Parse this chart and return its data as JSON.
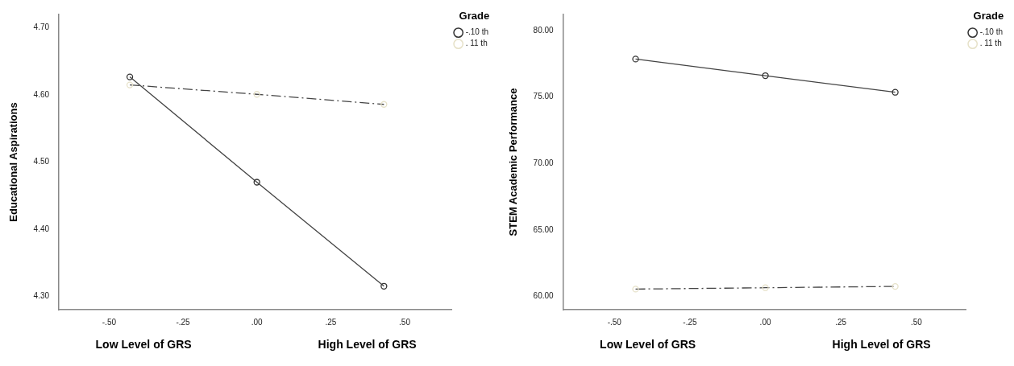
{
  "chart_data": [
    {
      "type": "line",
      "ylabel": "Educational Aspirations",
      "legend_title": "Grade",
      "legend": "top right",
      "marker": "circle",
      "grid": false,
      "xlim": [
        -0.67,
        0.66
      ],
      "xticks": [
        {
          "value": -0.5,
          "label": "-.50"
        },
        {
          "value": -0.25,
          "label": "-.25"
        },
        {
          "value": 0,
          "label": ".00"
        },
        {
          "value": 0.25,
          "label": ".25"
        },
        {
          "value": 0.5,
          "label": ".50"
        }
      ],
      "ylim": [
        4.28,
        4.72
      ],
      "yticks": [
        {
          "value": 4.3,
          "label": "4.30"
        },
        {
          "value": 4.4,
          "label": "4.40"
        },
        {
          "value": 4.5,
          "label": "4.50"
        },
        {
          "value": 4.6,
          "label": "4.60"
        },
        {
          "value": 4.7,
          "label": "4.70"
        }
      ],
      "x": [
        -0.43,
        0,
        0.43
      ],
      "series": [
        {
          "name": "-.10 th",
          "color": "#333333",
          "line_style": "solid",
          "values": [
            4.627,
            4.47,
            4.315
          ]
        },
        {
          "name": ". 11 th",
          "color": "#e6e1c8",
          "line_style": "dashed",
          "values": [
            4.615,
            4.601,
            4.586
          ]
        }
      ],
      "annotations": [
        "Low Level of GRS",
        "High Level of GRS"
      ]
    },
    {
      "type": "line",
      "ylabel": "STEM Academic Performance",
      "legend_title": "Grade",
      "legend": "top right",
      "marker": "circle",
      "grid": false,
      "xlim": [
        -0.67,
        0.665
      ],
      "xticks": [
        {
          "value": -0.5,
          "label": "-.50"
        },
        {
          "value": -0.25,
          "label": "-.25"
        },
        {
          "value": 0,
          "label": ".00"
        },
        {
          "value": 0.25,
          "label": ".25"
        },
        {
          "value": 0.5,
          "label": ".50"
        }
      ],
      "ylim": [
        59,
        81.2
      ],
      "yticks": [
        {
          "value": 60,
          "label": "60.00"
        },
        {
          "value": 65,
          "label": "65.00"
        },
        {
          "value": 70,
          "label": "70.00"
        },
        {
          "value": 75,
          "label": "75.00"
        },
        {
          "value": 80,
          "label": "80.00"
        }
      ],
      "x": [
        -0.43,
        0,
        0.43
      ],
      "series": [
        {
          "name": "-.10 th",
          "color": "#333333",
          "line_style": "solid",
          "values": [
            77.85,
            76.6,
            75.35
          ]
        },
        {
          "name": ". 11 th",
          "color": "#e6e1c8",
          "line_style": "dashed",
          "values": [
            60.55,
            60.65,
            60.75
          ]
        }
      ],
      "annotations": [
        "Low Level of GRS",
        "High Level of GRS"
      ]
    }
  ]
}
